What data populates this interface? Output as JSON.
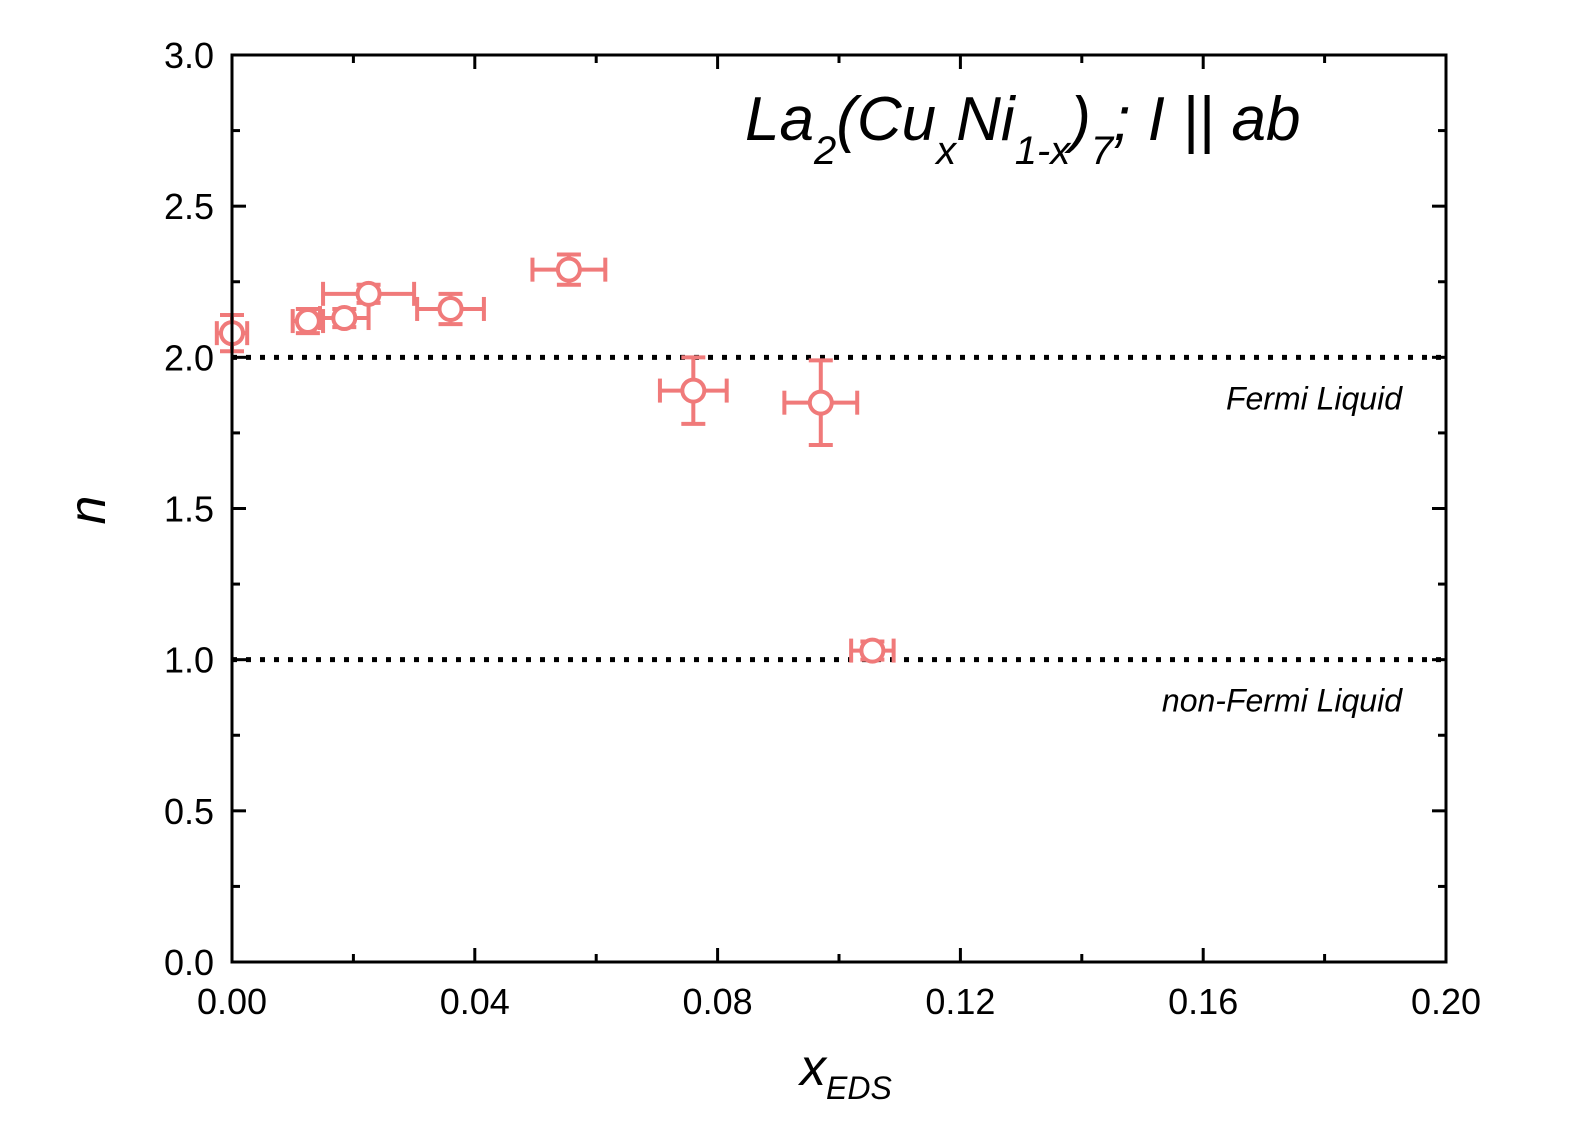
{
  "chart_data": {
    "type": "scatter",
    "title": "",
    "formula": {
      "parts": [
        {
          "text": "La",
          "shift": "base"
        },
        {
          "text": "2",
          "shift": "sub"
        },
        {
          "text": "(Cu",
          "shift": "base"
        },
        {
          "text": "x",
          "shift": "sub"
        },
        {
          "text": "Ni",
          "shift": "base"
        },
        {
          "text": "1-x",
          "shift": "sub"
        },
        {
          "text": ")",
          "shift": "base"
        },
        {
          "text": "7",
          "shift": "sub"
        },
        {
          "text": "; I || ab",
          "shift": "base"
        }
      ]
    },
    "xlabel_main": "x",
    "xlabel_sub": "EDS",
    "ylabel": "n",
    "xlim": [
      0.0,
      0.2
    ],
    "ylim": [
      0.0,
      3.0
    ],
    "xticks": [
      "0.00",
      "0.04",
      "0.08",
      "0.12",
      "0.16",
      "0.20"
    ],
    "yticks": [
      "0.0",
      "0.5",
      "1.0",
      "1.5",
      "2.0",
      "2.5",
      "3.0"
    ],
    "reference_lines": [
      {
        "y": 2.0,
        "label": "Fermi Liquid"
      },
      {
        "y": 1.0,
        "label": "non-Fermi Liquid"
      }
    ],
    "series": [
      {
        "color": "#f07a7a",
        "points": [
          {
            "x": 0.0,
            "y": 2.08,
            "xerr": 0.0025,
            "yerr": 0.06
          },
          {
            "x": 0.0125,
            "y": 2.12,
            "xerr": 0.0025,
            "yerr": 0.04
          },
          {
            "x": 0.0185,
            "y": 2.13,
            "xerr": 0.004,
            "yerr": 0.03
          },
          {
            "x": 0.0225,
            "y": 2.21,
            "xerr": 0.0075,
            "yerr": 0.03
          },
          {
            "x": 0.036,
            "y": 2.16,
            "xerr": 0.0055,
            "yerr": 0.05
          },
          {
            "x": 0.0555,
            "y": 2.29,
            "xerr": 0.006,
            "yerr": 0.05
          },
          {
            "x": 0.076,
            "y": 1.89,
            "xerr": 0.0055,
            "yerr": 0.11
          },
          {
            "x": 0.097,
            "y": 1.85,
            "xerr": 0.006,
            "yerr": 0.14
          },
          {
            "x": 0.1055,
            "y": 1.03,
            "xerr": 0.0035,
            "yerr": 0.03
          }
        ]
      }
    ],
    "grid": false,
    "legend": "none"
  }
}
